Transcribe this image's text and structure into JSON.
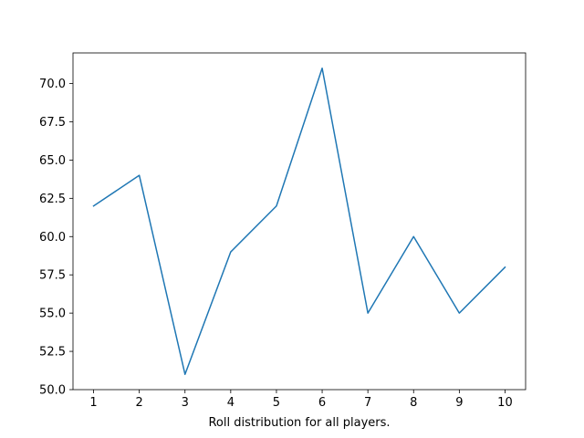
{
  "chart_data": {
    "type": "line",
    "title": "",
    "xlabel": "Roll distribution for all players.",
    "ylabel": "",
    "x": [
      1,
      2,
      3,
      4,
      5,
      6,
      7,
      8,
      9,
      10
    ],
    "series": [
      {
        "values": [
          62,
          64,
          51,
          59,
          62,
          71,
          55,
          60,
          55,
          58
        ],
        "color": "#1f77b4"
      }
    ],
    "xticks": [
      "1",
      "2",
      "3",
      "4",
      "5",
      "6",
      "7",
      "8",
      "9",
      "10"
    ],
    "yticks": [
      50.0,
      52.5,
      55.0,
      57.5,
      60.0,
      62.5,
      65.0,
      67.5,
      70.0
    ],
    "ytick_labels": [
      "50.0",
      "52.5",
      "55.0",
      "57.5",
      "60.0",
      "62.5",
      "65.0",
      "67.5",
      "70.0"
    ],
    "xlim": [
      0.55,
      10.45
    ],
    "ylim": [
      50.0,
      72.0
    ],
    "grid": false,
    "legend": false
  }
}
